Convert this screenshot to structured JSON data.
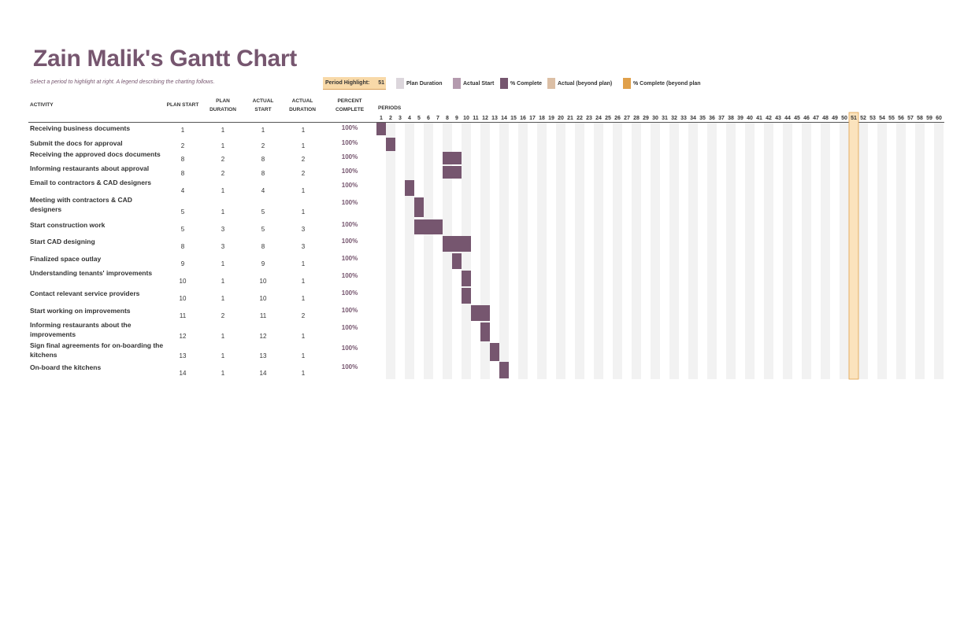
{
  "title": "Zain Malik's Gantt Chart",
  "subtitle": "Select a period to highlight at right.  A legend describing the charting follows.",
  "period_highlight": {
    "label": "Period Highlight:",
    "value": "51"
  },
  "legend": [
    {
      "label": "Plan Duration",
      "color": "#dcd6dc"
    },
    {
      "label": "Actual Start",
      "color": "#b49aae"
    },
    {
      "label": "% Complete",
      "color": "#76566f"
    },
    {
      "label": "Actual (beyond plan)",
      "color": "#dcbfa5"
    },
    {
      "label": "% Complete (beyond plan",
      "color": "#e0a04a"
    }
  ],
  "headers": {
    "activity": "ACTIVITY",
    "plan_start": "PLAN START",
    "plan_duration": "PLAN DURATION",
    "actual_start": "ACTUAL START",
    "actual_duration": "ACTUAL DURATION",
    "percent_complete": "PERCENT COMPLETE",
    "periods": "PERIODS"
  },
  "colors": {
    "title": "#76566f",
    "bar": "#76566f",
    "column_stripe": "#f2f2f2",
    "highlight_fill": "#fbe3bd",
    "highlight_stroke": "#e0a04a"
  },
  "chart_data": {
    "type": "gantt",
    "periods_range": [
      1,
      60
    ],
    "highlight_period": 51,
    "tasks": [
      {
        "activity": "Receiving business documents",
        "plan_start": 1,
        "plan_duration": 1,
        "actual_start": 1,
        "actual_duration": 1,
        "percent": "100%"
      },
      {
        "activity": "Submit the docs  for approval",
        "plan_start": 2,
        "plan_duration": 1,
        "actual_start": 2,
        "actual_duration": 1,
        "percent": "100%"
      },
      {
        "activity": "Receiving the approved docs documents",
        "plan_start": 8,
        "plan_duration": 2,
        "actual_start": 8,
        "actual_duration": 2,
        "percent": "100%"
      },
      {
        "activity": "Informing restaurants about approval",
        "plan_start": 8,
        "plan_duration": 2,
        "actual_start": 8,
        "actual_duration": 2,
        "percent": "100%"
      },
      {
        "activity": "Email to contractors & CAD designers",
        "plan_start": 4,
        "plan_duration": 1,
        "actual_start": 4,
        "actual_duration": 1,
        "percent": "100%"
      },
      {
        "activity": "Meeting with contractors & CAD designers",
        "plan_start": 5,
        "plan_duration": 1,
        "actual_start": 5,
        "actual_duration": 1,
        "percent": "100%"
      },
      {
        "activity": "Start construction work",
        "plan_start": 5,
        "plan_duration": 3,
        "actual_start": 5,
        "actual_duration": 3,
        "percent": "100%"
      },
      {
        "activity": "Start CAD designing",
        "plan_start": 8,
        "plan_duration": 3,
        "actual_start": 8,
        "actual_duration": 3,
        "percent": "100%"
      },
      {
        "activity": "Finalized space outlay",
        "plan_start": 9,
        "plan_duration": 1,
        "actual_start": 9,
        "actual_duration": 1,
        "percent": "100%"
      },
      {
        "activity": "Understanding tenants' improvements",
        "plan_start": 10,
        "plan_duration": 1,
        "actual_start": 10,
        "actual_duration": 1,
        "percent": "100%"
      },
      {
        "activity": "Contact relevant service providers",
        "plan_start": 10,
        "plan_duration": 1,
        "actual_start": 10,
        "actual_duration": 1,
        "percent": "100%"
      },
      {
        "activity": "Start working on improvements",
        "plan_start": 11,
        "plan_duration": 2,
        "actual_start": 11,
        "actual_duration": 2,
        "percent": "100%"
      },
      {
        "activity": "Informing restaurants about the improvements",
        "plan_start": 12,
        "plan_duration": 1,
        "actual_start": 12,
        "actual_duration": 1,
        "percent": "100%"
      },
      {
        "activity": "Sign final agreements for on-boarding the kitchens",
        "plan_start": 13,
        "plan_duration": 1,
        "actual_start": 13,
        "actual_duration": 1,
        "percent": "100%"
      },
      {
        "activity": "On-board the kitchens",
        "plan_start": 14,
        "plan_duration": 1,
        "actual_start": 14,
        "actual_duration": 1,
        "percent": "100%"
      }
    ]
  }
}
